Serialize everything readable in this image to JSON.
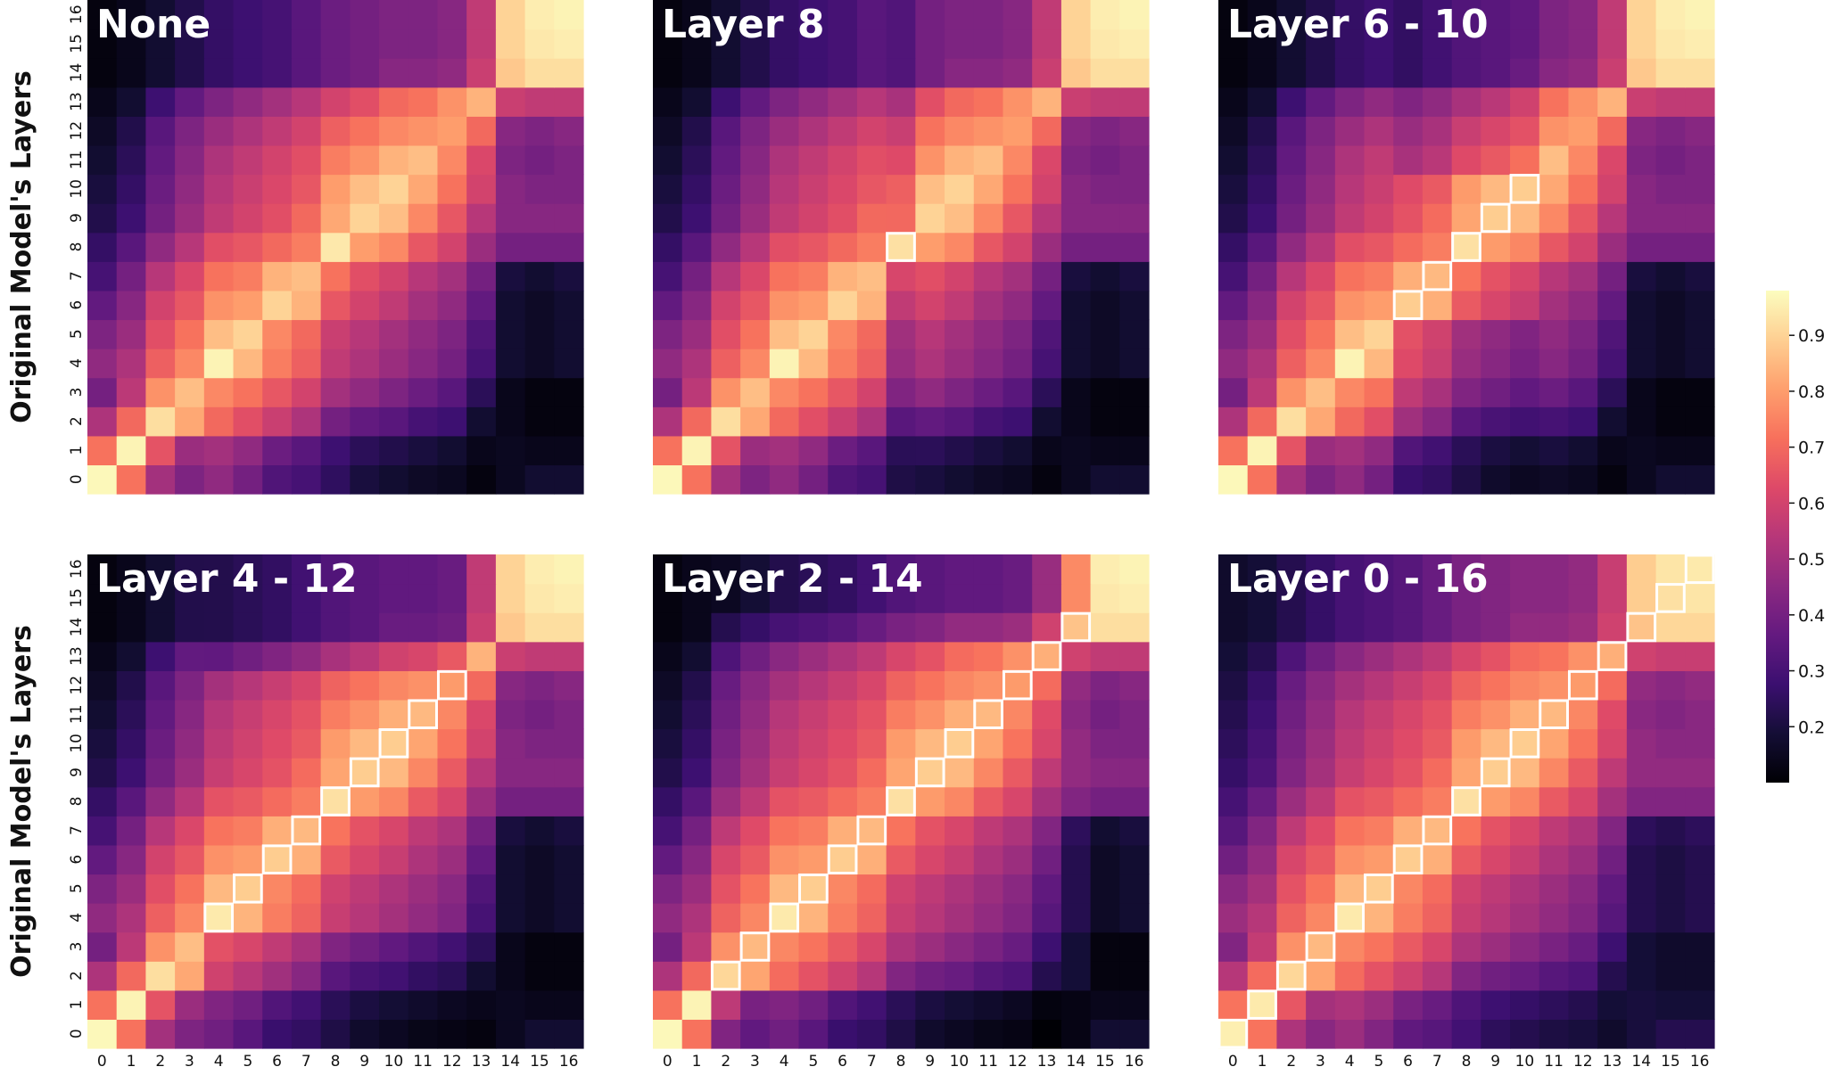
{
  "chart_data": {
    "type": "heatmap",
    "colormap": "magma",
    "colorbar": {
      "range": [
        0.1,
        0.98
      ],
      "ticks": [
        0.2,
        0.3,
        0.4,
        0.5,
        0.6,
        0.7,
        0.8,
        0.9
      ],
      "tick_labels": [
        "0.2",
        "0.3",
        "0.4",
        "0.5",
        "0.6",
        "0.7",
        "0.8",
        "0.9"
      ]
    },
    "ylabel": "Original Model's Layers",
    "x_tick_labels": [
      "0",
      "1",
      "2",
      "3",
      "4",
      "5",
      "6",
      "7",
      "8",
      "9",
      "10",
      "11",
      "12",
      "13",
      "14",
      "15",
      "16"
    ],
    "y_tick_labels": [
      "0",
      "1",
      "2",
      "3",
      "4",
      "5",
      "6",
      "7",
      "8",
      "9",
      "10",
      "11",
      "12",
      "13",
      "14",
      "15",
      "16"
    ],
    "panels": [
      {
        "title": "None",
        "duplicated_range": null
      },
      {
        "title": "Layer 8",
        "duplicated_range": [
          8,
          8
        ]
      },
      {
        "title": "Layer 6 - 10",
        "duplicated_range": [
          6,
          10
        ]
      },
      {
        "title": "Layer 4 - 12",
        "duplicated_range": [
          4,
          12
        ]
      },
      {
        "title": "Layer 2 - 14",
        "duplicated_range": [
          2,
          14
        ]
      },
      {
        "title": "Layer 0 - 16",
        "duplicated_range": [
          0,
          16
        ]
      }
    ],
    "base_similarity_matrix": [
      [
        0.97,
        0.72,
        0.5,
        0.42,
        0.46,
        0.4,
        0.32,
        0.3,
        0.25,
        0.2,
        0.18,
        0.16,
        0.15,
        0.12,
        0.15,
        0.18,
        0.18
      ],
      [
        0.72,
        0.96,
        0.65,
        0.48,
        0.5,
        0.46,
        0.38,
        0.34,
        0.28,
        0.24,
        0.22,
        0.2,
        0.18,
        0.14,
        0.15,
        0.14,
        0.14
      ],
      [
        0.52,
        0.7,
        0.92,
        0.82,
        0.7,
        0.64,
        0.58,
        0.52,
        0.4,
        0.36,
        0.34,
        0.3,
        0.28,
        0.18,
        0.14,
        0.12,
        0.12
      ],
      [
        0.4,
        0.55,
        0.78,
        0.86,
        0.76,
        0.72,
        0.66,
        0.6,
        0.5,
        0.46,
        0.42,
        0.38,
        0.34,
        0.24,
        0.14,
        0.12,
        0.12
      ],
      [
        0.46,
        0.52,
        0.68,
        0.76,
        0.96,
        0.85,
        0.74,
        0.68,
        0.56,
        0.52,
        0.48,
        0.44,
        0.4,
        0.3,
        0.18,
        0.16,
        0.18
      ],
      [
        0.42,
        0.48,
        0.64,
        0.72,
        0.86,
        0.9,
        0.76,
        0.7,
        0.58,
        0.54,
        0.5,
        0.46,
        0.42,
        0.32,
        0.18,
        0.16,
        0.18
      ],
      [
        0.36,
        0.44,
        0.6,
        0.66,
        0.78,
        0.8,
        0.9,
        0.84,
        0.66,
        0.6,
        0.56,
        0.5,
        0.46,
        0.36,
        0.18,
        0.16,
        0.18
      ],
      [
        0.3,
        0.4,
        0.54,
        0.62,
        0.72,
        0.74,
        0.84,
        0.86,
        0.72,
        0.64,
        0.6,
        0.54,
        0.5,
        0.4,
        0.2,
        0.18,
        0.2
      ],
      [
        0.26,
        0.34,
        0.46,
        0.54,
        0.64,
        0.66,
        0.7,
        0.74,
        0.94,
        0.8,
        0.76,
        0.66,
        0.6,
        0.48,
        0.4,
        0.4,
        0.4
      ],
      [
        0.22,
        0.28,
        0.4,
        0.48,
        0.56,
        0.6,
        0.64,
        0.7,
        0.82,
        0.9,
        0.86,
        0.76,
        0.66,
        0.54,
        0.44,
        0.44,
        0.44
      ],
      [
        0.2,
        0.26,
        0.38,
        0.46,
        0.54,
        0.58,
        0.62,
        0.66,
        0.8,
        0.86,
        0.9,
        0.82,
        0.72,
        0.6,
        0.44,
        0.42,
        0.42
      ],
      [
        0.18,
        0.24,
        0.36,
        0.44,
        0.52,
        0.56,
        0.6,
        0.64,
        0.74,
        0.78,
        0.84,
        0.86,
        0.76,
        0.62,
        0.42,
        0.4,
        0.42
      ],
      [
        0.16,
        0.22,
        0.34,
        0.42,
        0.48,
        0.52,
        0.56,
        0.6,
        0.68,
        0.72,
        0.76,
        0.78,
        0.8,
        0.7,
        0.44,
        0.42,
        0.44
      ],
      [
        0.14,
        0.18,
        0.28,
        0.36,
        0.42,
        0.46,
        0.5,
        0.54,
        0.6,
        0.64,
        0.7,
        0.72,
        0.78,
        0.84,
        0.58,
        0.56,
        0.56
      ],
      [
        0.12,
        0.14,
        0.18,
        0.22,
        0.26,
        0.28,
        0.3,
        0.34,
        0.38,
        0.4,
        0.44,
        0.44,
        0.46,
        0.58,
        0.88,
        0.92,
        0.92
      ],
      [
        0.12,
        0.14,
        0.18,
        0.22,
        0.26,
        0.28,
        0.3,
        0.34,
        0.38,
        0.4,
        0.42,
        0.42,
        0.44,
        0.56,
        0.9,
        0.94,
        0.95
      ],
      [
        0.12,
        0.14,
        0.18,
        0.22,
        0.26,
        0.28,
        0.3,
        0.34,
        0.38,
        0.4,
        0.42,
        0.42,
        0.44,
        0.56,
        0.9,
        0.95,
        0.96
      ]
    ]
  }
}
